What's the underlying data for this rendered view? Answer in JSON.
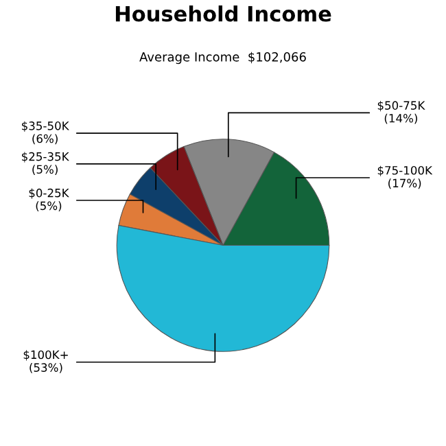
{
  "chart_data": {
    "type": "pie",
    "title": "Household Income",
    "subtitle": "Average Income  $102,066",
    "categories": [
      "$75-100K",
      "$50-75K",
      "$35-50K",
      "$25-35K",
      "$0-25K",
      "$100K+"
    ],
    "values": [
      17,
      14,
      6,
      5,
      5,
      53
    ],
    "colors": [
      "#13643a",
      "#868686",
      "#7a1418",
      "#0e3f6b",
      "#e07b39",
      "#22b8d6"
    ],
    "value_labels": [
      "(17%)",
      "(14%)",
      "(6%)",
      "(5%)",
      "(5%)",
      "(53%)"
    ],
    "legend": false
  }
}
